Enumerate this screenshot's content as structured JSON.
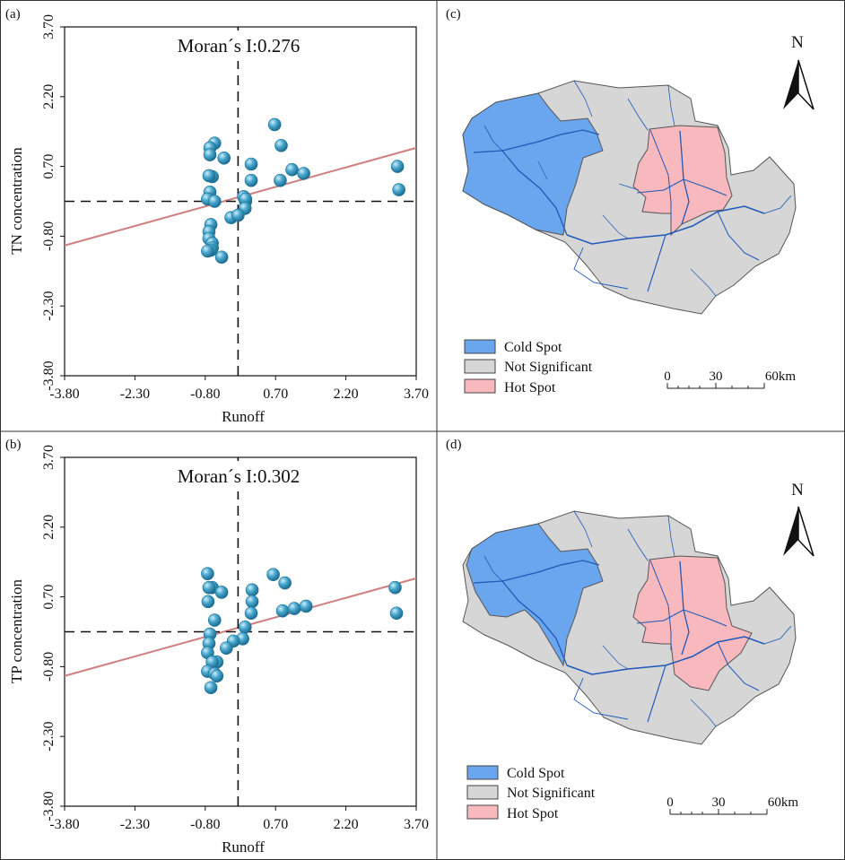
{
  "colors": {
    "point_fill": "#3b9cc4",
    "point_highlight": "#bfe6f5",
    "point_stroke": "#1d6f92",
    "fit_line": "#cf7f7f",
    "cold": "#6aa6ee",
    "not_significant": "#d6d6d6",
    "hot": "#f7b9bd",
    "river": "#1f58b8",
    "outline": "#444444"
  },
  "chart_data": [
    {
      "panel": "(a)",
      "type": "scatter",
      "title": "Moran´s  I:0.276",
      "xlabel": "Runoff",
      "ylabel": "TN concentration",
      "xlim": [
        -3.8,
        3.7
      ],
      "ylim": [
        -3.8,
        3.7
      ],
      "ticks": [
        "-3.80",
        "-2.30",
        "-0.80",
        "0.70",
        "2.20",
        "3.70"
      ],
      "grid": false,
      "fit": {
        "x": [
          -3.8,
          3.7
        ],
        "y": [
          -1.0,
          1.1
        ]
      },
      "crosshair": {
        "x": -0.1,
        "y": -0.05
      },
      "points": {
        "x": [
          -0.6,
          -0.7,
          -0.7,
          -0.65,
          -0.4,
          0.02,
          0.06,
          0.68,
          0.82,
          0.06,
          1.05,
          1.3,
          0.8,
          0.18,
          0.18,
          3.3,
          3.33,
          -0.7,
          -0.75,
          -0.72,
          -0.6,
          -0.68,
          0.05,
          -0.25,
          -0.1,
          -0.72,
          -0.72,
          -0.65,
          -0.65,
          -0.68,
          -0.75,
          -0.45
        ],
        "y": [
          1.2,
          1.1,
          0.95,
          0.48,
          0.88,
          0.05,
          -0.05,
          1.6,
          1.15,
          0.0,
          0.63,
          0.55,
          0.4,
          0.4,
          0.75,
          0.7,
          0.2,
          0.15,
          0.0,
          0.5,
          -0.05,
          -0.55,
          -0.2,
          -0.4,
          -0.35,
          -0.7,
          -0.85,
          -0.95,
          -1.05,
          -1.1,
          -1.12,
          -1.25
        ]
      }
    },
    {
      "panel": "(b)",
      "type": "scatter",
      "title": "Moran´s  I:0.302",
      "xlabel": "Runoff",
      "ylabel": "TP concentration",
      "xlim": [
        -3.8,
        3.7
      ],
      "ylim": [
        -3.8,
        3.7
      ],
      "ticks": [
        "-3.80",
        "-2.30",
        "-0.80",
        "0.70",
        "2.20",
        "3.70"
      ],
      "grid": false,
      "fit": {
        "x": [
          -3.8,
          3.7
        ],
        "y": [
          -1.0,
          1.1
        ]
      },
      "crosshair": {
        "x": -0.1,
        "y": -0.05
      },
      "points": {
        "x": [
          -0.75,
          -0.65,
          -0.72,
          -0.45,
          0.65,
          0.9,
          0.2,
          0.2,
          -0.74,
          0.18,
          0.85,
          1.1,
          1.35,
          3.25,
          3.28,
          -0.6,
          0.05,
          -0.7,
          -0.72,
          0.0,
          -0.2,
          -0.35,
          -0.55,
          -0.75,
          -0.65,
          -0.75,
          -0.6,
          -0.55,
          -0.68
        ],
        "y": [
          1.2,
          0.9,
          0.9,
          0.8,
          1.18,
          1.0,
          0.85,
          0.6,
          0.6,
          0.35,
          0.4,
          0.45,
          0.5,
          0.9,
          0.35,
          0.2,
          0.05,
          -0.1,
          -0.3,
          -0.2,
          -0.25,
          -0.4,
          -0.7,
          -0.5,
          -0.7,
          -0.9,
          -0.95,
          -1.0,
          -1.25
        ]
      }
    }
  ],
  "maps": [
    {
      "panel": "(c)",
      "north": "N",
      "scale_labels": [
        "0",
        "30",
        "60km"
      ],
      "legend": [
        {
          "label": "Cold Spot",
          "color": "#6aa6ee"
        },
        {
          "label": "Not Significant",
          "color": "#d6d6d6"
        },
        {
          "label": "Hot Spot",
          "color": "#f7b9bd"
        }
      ]
    },
    {
      "panel": "(d)",
      "north": "N",
      "scale_labels": [
        "0",
        "30",
        "60km"
      ],
      "legend": [
        {
          "label": "Cold Spot",
          "color": "#6aa6ee"
        },
        {
          "label": "Not Significant",
          "color": "#d6d6d6"
        },
        {
          "label": "Hot Spot",
          "color": "#f7b9bd"
        }
      ]
    }
  ]
}
